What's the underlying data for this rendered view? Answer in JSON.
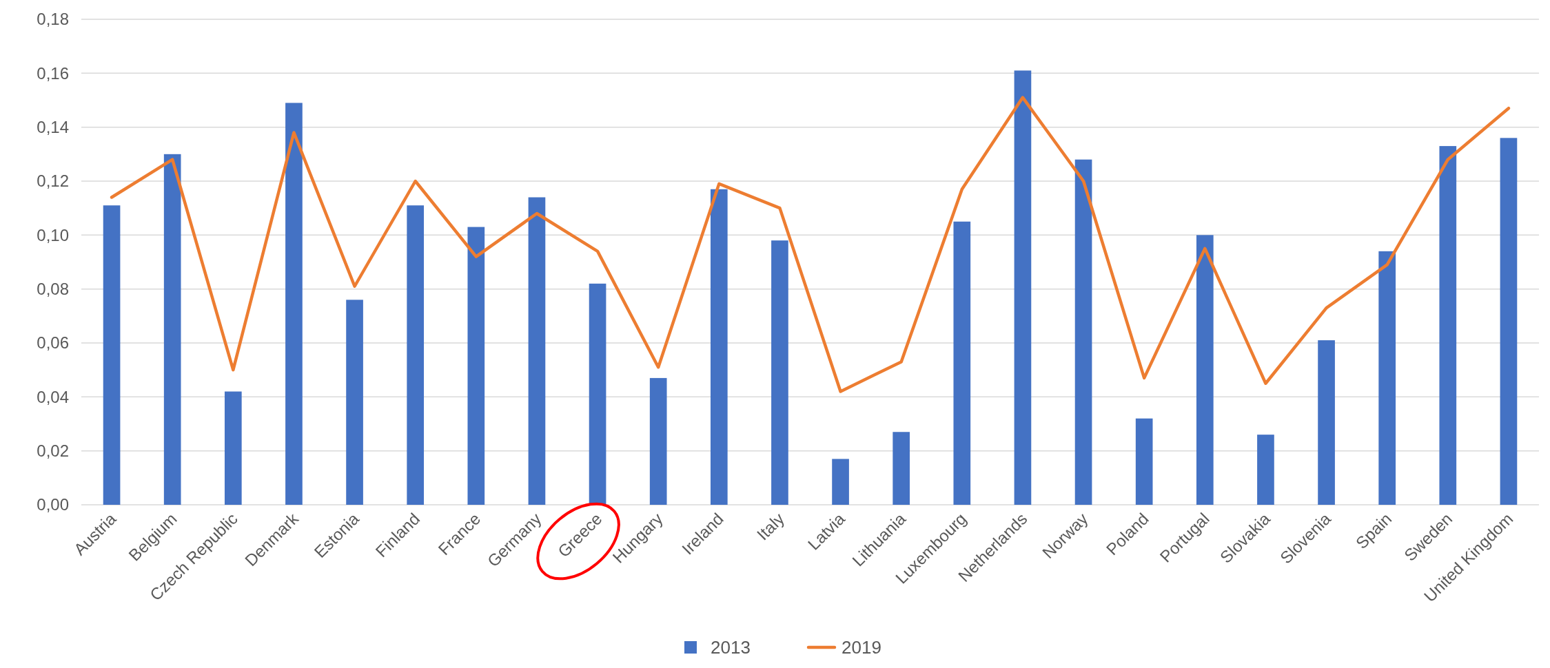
{
  "chart_data": {
    "type": "bar",
    "categories": [
      "Austria",
      "Belgium",
      "Czech Republic",
      "Denmark",
      "Estonia",
      "Finland",
      "France",
      "Germany",
      "Greece",
      "Hungary",
      "Ireland",
      "Italy",
      "Latvia",
      "Lithuania",
      "Luxembourg",
      "Netherlands",
      "Norway",
      "Poland",
      "Portugal",
      "Slovakia",
      "Slovenia",
      "Spain",
      "Sweden",
      "United Kingdom"
    ],
    "series": [
      {
        "name": "2013",
        "color": "#4472c4",
        "values": [
          0.111,
          0.13,
          0.042,
          0.149,
          0.076,
          0.111,
          0.103,
          0.114,
          0.082,
          0.047,
          0.117,
          0.098,
          0.017,
          0.027,
          0.105,
          0.161,
          0.128,
          0.032,
          0.1,
          0.026,
          0.061,
          0.094,
          0.133,
          0.136
        ]
      },
      {
        "name": "2019",
        "type": "line",
        "color": "#ed7d31",
        "values": [
          0.114,
          0.128,
          0.05,
          0.138,
          0.081,
          0.12,
          0.092,
          0.108,
          0.094,
          0.051,
          0.119,
          0.11,
          0.042,
          0.053,
          0.117,
          0.151,
          0.12,
          0.047,
          0.095,
          0.045,
          0.073,
          0.089,
          0.128,
          0.147
        ]
      }
    ],
    "ylim": [
      0,
      0.18
    ],
    "yticks": [
      {
        "value": 0,
        "label": "0,00"
      },
      {
        "value": 0.02,
        "label": "0,02"
      },
      {
        "value": 0.04,
        "label": "0,04"
      },
      {
        "value": 0.06,
        "label": "0,06"
      },
      {
        "value": 0.08,
        "label": "0,08"
      },
      {
        "value": 0.1,
        "label": "0,10"
      },
      {
        "value": 0.12,
        "label": "0,12"
      },
      {
        "value": 0.14,
        "label": "0,14"
      },
      {
        "value": 0.16,
        "label": "0,16"
      },
      {
        "value": 0.18,
        "label": "0,18"
      }
    ],
    "grid": "y",
    "legend": "bottom"
  }
}
